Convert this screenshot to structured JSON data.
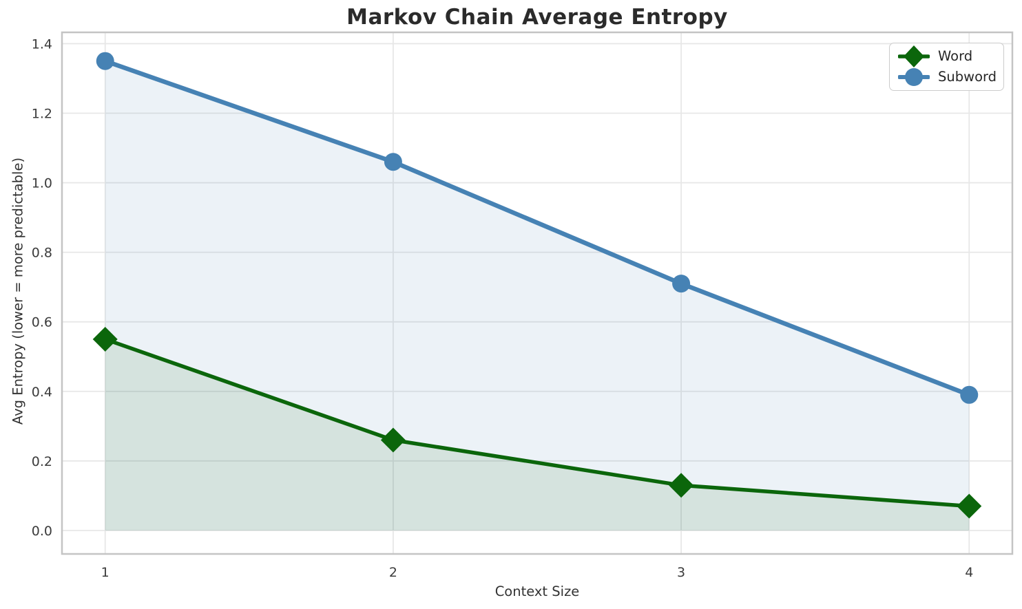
{
  "chart_data": {
    "type": "line",
    "title": "Markov Chain Average Entropy",
    "xlabel": "Context Size",
    "ylabel": "Avg Entropy (lower = more predictable)",
    "x": [
      1,
      2,
      3,
      4
    ],
    "series": [
      {
        "name": "Word",
        "values": [
          0.55,
          0.26,
          0.13,
          0.07
        ],
        "color": "#0b660b",
        "marker": "diamond",
        "fill_alpha": 0.1
      },
      {
        "name": "Subword",
        "values": [
          1.35,
          1.06,
          0.71,
          0.39
        ],
        "color": "#4682b4",
        "marker": "circle",
        "fill_alpha": 0.1
      }
    ],
    "xticks": [
      1,
      2,
      3,
      4
    ],
    "xticklabels": [
      "1",
      "2",
      "3",
      "4"
    ],
    "yticks": [
      0.0,
      0.2,
      0.4,
      0.6,
      0.8,
      1.0,
      1.2,
      1.4
    ],
    "yticklabels": [
      "0.0",
      "0.2",
      "0.4",
      "0.6",
      "0.8",
      "1.0",
      "1.2",
      "1.4"
    ],
    "xlim": [
      0.85,
      4.15
    ],
    "ylim": [
      -0.0675,
      1.4325
    ],
    "grid": true,
    "area_fill_to_zero": true,
    "legend_position": "upper right",
    "grid_color": "#e7e7e7",
    "spine_color": "#c4c4c4",
    "title_color": "#2b2b2b",
    "tick_color": "#3b3b3b"
  }
}
